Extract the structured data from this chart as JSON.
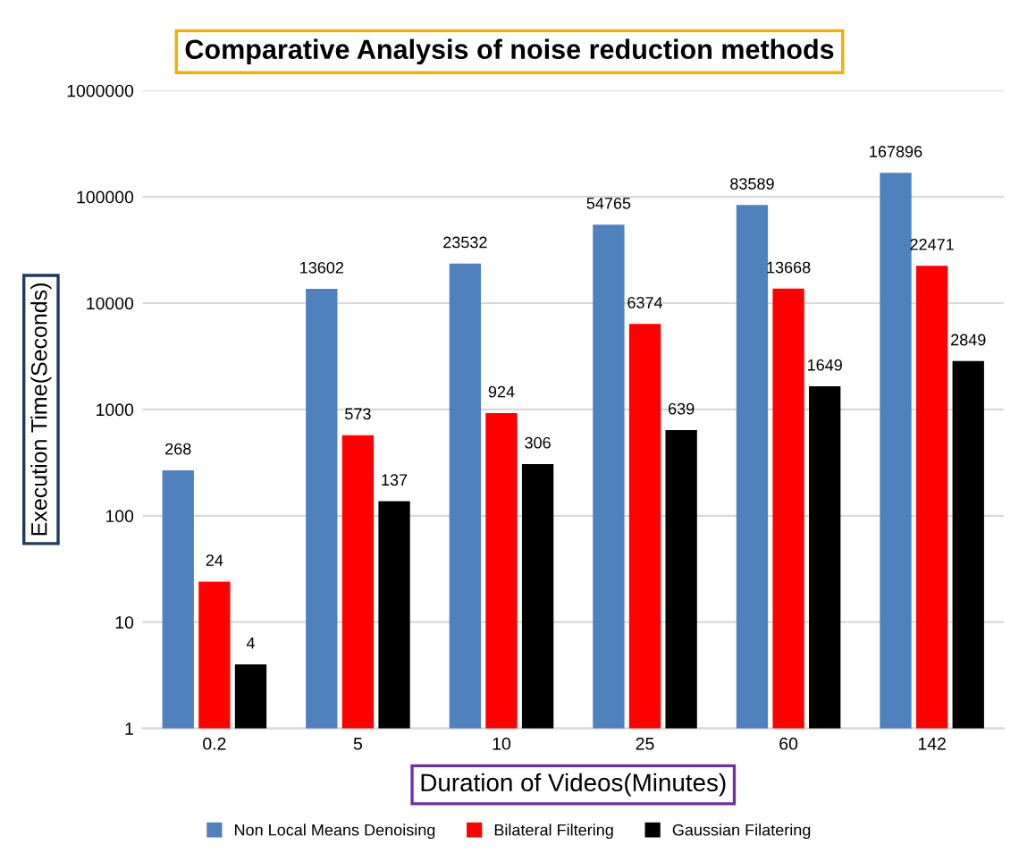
{
  "chart_data": {
    "type": "bar",
    "title": "Comparative Analysis of noise reduction methods",
    "xlabel": "Duration of Videos(Minutes)",
    "ylabel": "Execution Time(Seconds)",
    "categories": [
      "0.2",
      "5",
      "10",
      "25",
      "60",
      "142"
    ],
    "series": [
      {
        "name": "Non Local Means Denoising",
        "color": "#4f81bd",
        "values": [
          268,
          13602,
          23532,
          54765,
          83589,
          167896
        ]
      },
      {
        "name": "Bilateral Filtering",
        "color": "#ff0000",
        "values": [
          24,
          573,
          924,
          6374,
          13668,
          22471
        ]
      },
      {
        "name": "Gaussian Filatering",
        "color": "#000000",
        "values": [
          4,
          137,
          306,
          639,
          1649,
          2849
        ]
      }
    ],
    "log": "y",
    "ylim": [
      1,
      1000000
    ],
    "yticks": [
      1,
      10,
      100,
      1000,
      10000,
      100000,
      1000000
    ],
    "grid": "y",
    "legend": "bottom",
    "data_labels": true
  }
}
